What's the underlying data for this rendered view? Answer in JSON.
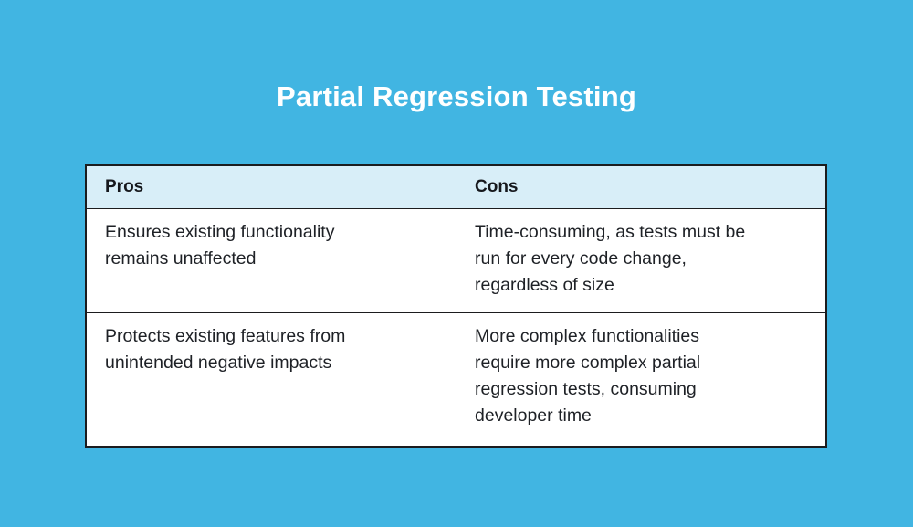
{
  "page": {
    "background_color": "#41B5E2",
    "title_color": "#FFFFFF",
    "border_color": "#1B1C1E",
    "header_bg_color": "#D8EEF8",
    "cell_bg_color": "#FFFFFF",
    "text_color": "#1E2126"
  },
  "chart_data": {
    "type": "table",
    "title": "Partial Regression Testing",
    "columns": [
      "Pros",
      "Cons"
    ],
    "rows": [
      [
        "Ensures existing functionality\nremains unaffected",
        "Time-consuming, as tests must be\nrun for every code change,\nregardless of size"
      ],
      [
        "Protects existing features from\nunintended negative impacts",
        "More complex functionalities\nrequire more complex partial\nregression tests, consuming\ndeveloper time"
      ]
    ],
    "layout_hints": {
      "legend": "none",
      "grid": "table borders visible",
      "header_row_shaded": true
    }
  }
}
